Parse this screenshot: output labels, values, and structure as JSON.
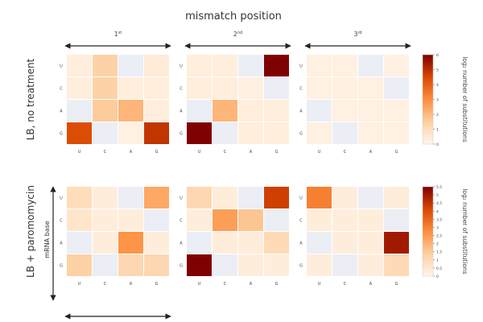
{
  "chart_data": {
    "type": "heatmap",
    "title": "mismatch position",
    "positions": [
      "1st",
      "2nd",
      "3rd"
    ],
    "position_labels": {
      "1st": {
        "num": "1",
        "sup": "st"
      },
      "2nd": {
        "num": "2",
        "sup": "nd"
      },
      "3rd": {
        "num": "3",
        "sup": "rd"
      }
    },
    "row_labels": [
      "U",
      "C",
      "A",
      "G"
    ],
    "col_labels": [
      "U",
      "C",
      "A",
      "G"
    ],
    "ylabel_inner": "mRNA base",
    "colorbar_label": "log₂ number of substitutions",
    "colormap": [
      "#fff5eb",
      "#fdd0a2",
      "#fd8d3c",
      "#d94801",
      "#7f0000"
    ],
    "missing_color": "#eceef5",
    "rows": [
      {
        "name": "LB, no treatment",
        "vmax": 6,
        "colorbar_ticks": [
          0,
          1,
          2,
          3,
          4,
          5,
          6
        ],
        "panels": [
          {
            "position": "1st",
            "values": [
              [
                0.3,
                1.4,
                null,
                0.4
              ],
              [
                0.3,
                1.4,
                0.3,
                0.3
              ],
              [
                null,
                1.6,
                2.1,
                0.3
              ],
              [
                4.4,
                null,
                0.2,
                4.9
              ]
            ]
          },
          {
            "position": "2nd",
            "values": [
              [
                0.3,
                0.3,
                null,
                6.0
              ],
              [
                0.3,
                0.3,
                0.2,
                null
              ],
              [
                null,
                2.1,
                0.3,
                0.3
              ],
              [
                6.3,
                null,
                0.3,
                0.3
              ]
            ]
          },
          {
            "position": "3rd",
            "values": [
              [
                0.2,
                0.2,
                null,
                0.2
              ],
              [
                0.2,
                0.2,
                0.2,
                null
              ],
              [
                null,
                0.2,
                0.2,
                0.2
              ],
              [
                0.2,
                null,
                0.2,
                0.2
              ]
            ]
          }
        ]
      },
      {
        "name": "LB + paromomycin",
        "vmax": 5.5,
        "colorbar_ticks": [
          0,
          0.5,
          1,
          1.5,
          2,
          2.5,
          3,
          3.5,
          4,
          4.5,
          5,
          5.5
        ],
        "panels": [
          {
            "position": "1st",
            "values": [
              [
                0.9,
                0.3,
                null,
                2.2
              ],
              [
                0.6,
                0.3,
                0.3,
                null
              ],
              [
                null,
                0.3,
                2.6,
                0.3
              ],
              [
                1.3,
                null,
                1.1,
                1.1
              ]
            ]
          },
          {
            "position": "2nd",
            "values": [
              [
                1.1,
                0.3,
                null,
                4.3
              ],
              [
                0.3,
                2.4,
                1.6,
                null
              ],
              [
                null,
                0.3,
                0.3,
                1.0
              ],
              [
                5.5,
                null,
                0.3,
                0.3
              ]
            ]
          },
          {
            "position": "3rd",
            "values": [
              [
                3.0,
                0.3,
                null,
                0.3
              ],
              [
                0.3,
                0.3,
                0.3,
                null
              ],
              [
                null,
                0.3,
                0.3,
                5.0
              ],
              [
                0.3,
                null,
                0.3,
                1.0
              ]
            ]
          }
        ]
      }
    ]
  }
}
